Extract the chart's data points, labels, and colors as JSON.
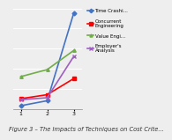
{
  "x": [
    1,
    2,
    3
  ],
  "series": [
    {
      "label": "Time Crashi...",
      "values": [
        0.3,
        0.8,
        9.5
      ],
      "color": "#4472C4",
      "marker": "D",
      "linewidth": 1.2,
      "markersize": 2.5
    },
    {
      "label": "Concurrent\nEngineering",
      "values": [
        1.0,
        1.4,
        3.0
      ],
      "color": "#FF0000",
      "marker": "s",
      "linewidth": 1.2,
      "markersize": 2.5
    },
    {
      "label": "Value Engi...",
      "values": [
        3.2,
        3.9,
        5.8
      ],
      "color": "#70AD47",
      "marker": "^",
      "linewidth": 1.2,
      "markersize": 2.5
    },
    {
      "label": "Employer's\nAnalysis",
      "values": [
        0.9,
        1.1,
        5.2
      ],
      "color": "#9E5FC1",
      "marker": "x",
      "linewidth": 1.2,
      "markersize": 2.5
    }
  ],
  "xlim": [
    0.7,
    3.3
  ],
  "ylim": [
    0,
    10
  ],
  "xticks": [
    1,
    2,
    3
  ],
  "caption": "Figure 3 – The Impacts of Techniques on Cost Crite...",
  "caption_fontsize": 4.8,
  "background_color": "#eeeeee",
  "grid_color": "#ffffff",
  "legend_fontsize": 4.0,
  "tick_fontsize": 4.5
}
